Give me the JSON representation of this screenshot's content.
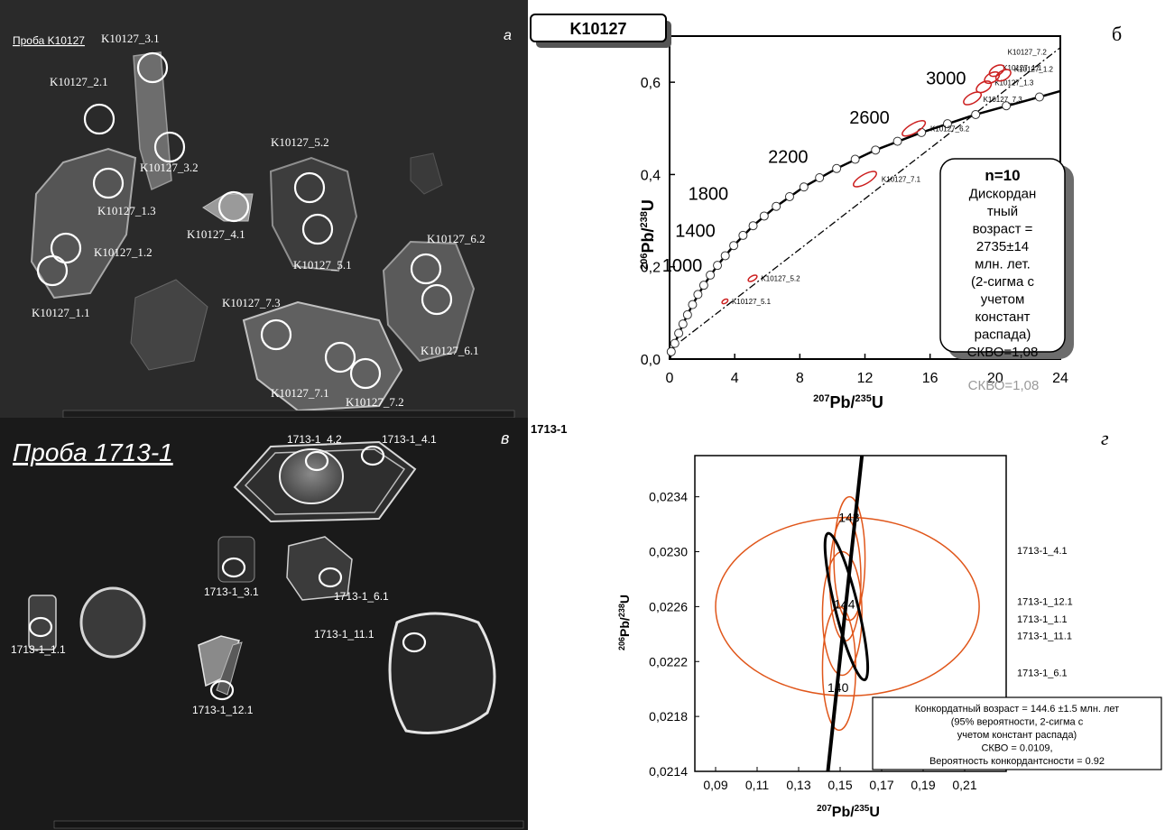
{
  "panel_a": {
    "letter": "а",
    "sample_label": "Проба K10127",
    "spots": [
      {
        "id": "K10127_3.1"
      },
      {
        "id": "K10127_2.1"
      },
      {
        "id": "K10127_3.2"
      },
      {
        "id": "K10127_1.3"
      },
      {
        "id": "K10127_5.2"
      },
      {
        "id": "K10127_4.1"
      },
      {
        "id": "K10127_5.1"
      },
      {
        "id": "K10127_1.2"
      },
      {
        "id": "K10127_6.2"
      },
      {
        "id": "K10127_1.1"
      },
      {
        "id": "K10127_7.3"
      },
      {
        "id": "K10127_6.1"
      },
      {
        "id": "K10127_7.1"
      },
      {
        "id": "K10127_7.2"
      }
    ]
  },
  "panel_v": {
    "letter": "в",
    "sample_label": "Проба 1713-1",
    "spots": [
      {
        "id": "1713-1_4.2"
      },
      {
        "id": "1713-1_4.1"
      },
      {
        "id": "1713-1_3.1"
      },
      {
        "id": "1713-1_6.1"
      },
      {
        "id": "1713-1_1.1"
      },
      {
        "id": "1713-1_11.1"
      },
      {
        "id": "1713-1_12.1"
      }
    ]
  },
  "chart_data": [
    {
      "panel_letter": "б",
      "sample_tag": "K10127",
      "type": "scatter",
      "xlabel_parts": [
        "207",
        "Pb/",
        "235",
        "U"
      ],
      "ylabel_parts": [
        "206",
        "Pb/",
        "238",
        "U"
      ],
      "xlim": [
        0,
        24
      ],
      "ylim": [
        0,
        0.7
      ],
      "xticks": [
        0,
        4,
        8,
        12,
        16,
        20,
        24
      ],
      "xtick_labels": [
        "0",
        "4",
        "8",
        "12",
        "16",
        "20",
        "24"
      ],
      "yticks": [
        0,
        0.2,
        0.4,
        0.6
      ],
      "ytick_labels": [
        "0,0",
        "0,2",
        "0,4",
        "0,6"
      ],
      "concordia_points": [
        {
          "x": 0.1,
          "y": 0.016
        },
        {
          "x": 0.32,
          "y": 0.034
        },
        {
          "x": 0.56,
          "y": 0.056
        },
        {
          "x": 0.82,
          "y": 0.076
        },
        {
          "x": 1.1,
          "y": 0.096
        },
        {
          "x": 1.41,
          "y": 0.118
        },
        {
          "x": 1.74,
          "y": 0.14
        },
        {
          "x": 2.1,
          "y": 0.16
        },
        {
          "x": 2.5,
          "y": 0.182
        },
        {
          "x": 2.94,
          "y": 0.203
        },
        {
          "x": 3.42,
          "y": 0.224
        },
        {
          "x": 3.94,
          "y": 0.246
        },
        {
          "x": 4.51,
          "y": 0.268
        },
        {
          "x": 5.13,
          "y": 0.289
        },
        {
          "x": 5.81,
          "y": 0.31
        },
        {
          "x": 6.55,
          "y": 0.331
        },
        {
          "x": 7.37,
          "y": 0.352
        },
        {
          "x": 8.25,
          "y": 0.373
        },
        {
          "x": 9.21,
          "y": 0.393
        },
        {
          "x": 10.26,
          "y": 0.413
        },
        {
          "x": 11.4,
          "y": 0.433
        },
        {
          "x": 12.65,
          "y": 0.453
        },
        {
          "x": 14.0,
          "y": 0.472
        },
        {
          "x": 15.47,
          "y": 0.491
        },
        {
          "x": 17.07,
          "y": 0.51
        },
        {
          "x": 18.8,
          "y": 0.53
        },
        {
          "x": 20.68,
          "y": 0.549
        },
        {
          "x": 22.72,
          "y": 0.568
        }
      ],
      "concordia_curve": [
        {
          "x": 0,
          "y": 0
        },
        {
          "x": 0.32,
          "y": 0.034
        },
        {
          "x": 0.82,
          "y": 0.076
        },
        {
          "x": 1.41,
          "y": 0.118
        },
        {
          "x": 2.1,
          "y": 0.16
        },
        {
          "x": 2.94,
          "y": 0.203
        },
        {
          "x": 3.94,
          "y": 0.246
        },
        {
          "x": 5.13,
          "y": 0.289
        },
        {
          "x": 6.55,
          "y": 0.331
        },
        {
          "x": 8.25,
          "y": 0.373
        },
        {
          "x": 10.26,
          "y": 0.413
        },
        {
          "x": 12.65,
          "y": 0.453
        },
        {
          "x": 15.47,
          "y": 0.491
        },
        {
          "x": 18.8,
          "y": 0.53
        },
        {
          "x": 22.72,
          "y": 0.568
        },
        {
          "x": 24.0,
          "y": 0.581
        }
      ],
      "age_labels": [
        {
          "text": "1000",
          "x": 1.0,
          "y": 0.19
        },
        {
          "text": "1400",
          "x": 1.8,
          "y": 0.265
        },
        {
          "text": "1800",
          "x": 2.6,
          "y": 0.345
        },
        {
          "text": "2200",
          "x": 7.5,
          "y": 0.425
        },
        {
          "text": "2600",
          "x": 12.5,
          "y": 0.51
        },
        {
          "text": "3000",
          "x": 17.2,
          "y": 0.595
        }
      ],
      "discordia_line": [
        {
          "x": 0,
          "y": 0.02
        },
        {
          "x": 24,
          "y": 0.675
        }
      ],
      "ellipses": [
        {
          "label": "K10127_5.1",
          "x": 3.4,
          "y": 0.125,
          "rx": 0.2,
          "ry": 0.004,
          "angle": -30
        },
        {
          "label": "K10127_5.2",
          "x": 5.1,
          "y": 0.175,
          "rx": 0.3,
          "ry": 0.005,
          "angle": -30
        },
        {
          "label": "K10127_7.1",
          "x": 12.0,
          "y": 0.39,
          "rx": 0.8,
          "ry": 0.01,
          "angle": -30
        },
        {
          "label": "K10127_6.2",
          "x": 15.0,
          "y": 0.5,
          "rx": 0.8,
          "ry": 0.01,
          "angle": -30
        },
        {
          "label": "K10127_7.3",
          "x": 18.6,
          "y": 0.565,
          "rx": 0.6,
          "ry": 0.01,
          "angle": -30
        },
        {
          "label": "K10127_1.3",
          "x": 19.3,
          "y": 0.59,
          "rx": 0.5,
          "ry": 0.01,
          "angle": -30
        },
        {
          "label": "K10127_1.1",
          "x": 19.8,
          "y": 0.61,
          "rx": 0.5,
          "ry": 0.01,
          "angle": -30
        },
        {
          "label": "K10127_7.2",
          "x": 20.1,
          "y": 0.625,
          "rx": 0.5,
          "ry": 0.01,
          "angle": -30
        },
        {
          "label": "K10127_1.2",
          "x": 20.5,
          "y": 0.615,
          "rx": 0.5,
          "ry": 0.01,
          "angle": -30
        }
      ],
      "info_box": [
        "n=10",
        "Дискордан",
        "тный",
        "возраст =",
        "2735±14",
        "млн. лет.",
        "(2-сигма с",
        "учетом",
        "констант",
        "распада)",
        "СКВО=1,08"
      ],
      "mswd_shadow_text": "СКВО=1,08"
    },
    {
      "panel_letter": "г",
      "sample_tag": "1713-1",
      "type": "scatter",
      "xlabel_parts": [
        "207",
        "Pb/",
        "235",
        "U"
      ],
      "ylabel_parts": [
        "206",
        "Pb/",
        "238",
        "U"
      ],
      "xlim": [
        0.08,
        0.23
      ],
      "ylim": [
        0.0214,
        0.0237
      ],
      "xticks": [
        0.09,
        0.11,
        0.13,
        0.15,
        0.17,
        0.19,
        0.21
      ],
      "xtick_labels": [
        "0,09",
        "0,11",
        "0,13",
        "0,15",
        "0,17",
        "0,19",
        "0,21"
      ],
      "yticks": [
        0.0214,
        0.0218,
        0.0222,
        0.0226,
        0.023,
        0.0234
      ],
      "ytick_labels": [
        "0,0214",
        "0,0218",
        "0,0222",
        "0,0226",
        "0,0230",
        "0,0234"
      ],
      "concordia_line": [
        {
          "x": 0.1441,
          "y": 0.0214
        },
        {
          "x": 0.1605,
          "y": 0.0237
        }
      ],
      "age_labels": [
        {
          "text": "143",
          "x": 0.1543,
          "y": 0.02325
        },
        {
          "text": "144",
          "x": 0.1521,
          "y": 0.02262
        },
        {
          "text": "140",
          "x": 0.149,
          "y": 0.02201
        }
      ],
      "ellipses": [
        {
          "label": "1713-1_4.1",
          "x": 0.1535,
          "y": 0.0226,
          "rx": 0.0635,
          "ry": 0.00065
        },
        {
          "label": "1713-1_12.1",
          "x": 0.1545,
          "y": 0.02295,
          "rx": 0.0075,
          "ry": 0.00045
        },
        {
          "label": "1713-1_1.1",
          "x": 0.1525,
          "y": 0.0228,
          "rx": 0.0075,
          "ry": 0.00045
        },
        {
          "label": "1713-1_11.1",
          "x": 0.151,
          "y": 0.02255,
          "rx": 0.0095,
          "ry": 0.00045
        },
        {
          "label": "1713-1_6.1",
          "x": 0.1495,
          "y": 0.02215,
          "rx": 0.008,
          "ry": 0.00045
        }
      ],
      "concordia_ellipse": {
        "x": 0.153,
        "y": 0.0226,
        "rx": 0.0055,
        "ry": 0.00055,
        "angle": -14
      },
      "legend_labels": [
        {
          "text": "1713-1_4.1",
          "y": 0.02301
        },
        {
          "text": "1713-1_12.1",
          "y": 0.02264
        },
        {
          "text": "1713-1_1.1",
          "y": 0.02251
        },
        {
          "text": "1713-1_11.1",
          "y": 0.02239
        },
        {
          "text": "1713-1_6.1",
          "y": 0.02212
        }
      ],
      "info_box": [
        "Конкордатный возраст = 144.6 ±1.5 млн. лет",
        "(95% вероятности, 2-сигма с",
        "учетом констант распада)",
        "СКВО  = 0.0109,",
        "Вероятность конкордантсности = 0.92"
      ]
    }
  ],
  "colors": {
    "red_ellipse": "#cc1f1f",
    "orange_ellipse": "#e0561a",
    "image_bg_dark": "#1a1a1a"
  }
}
